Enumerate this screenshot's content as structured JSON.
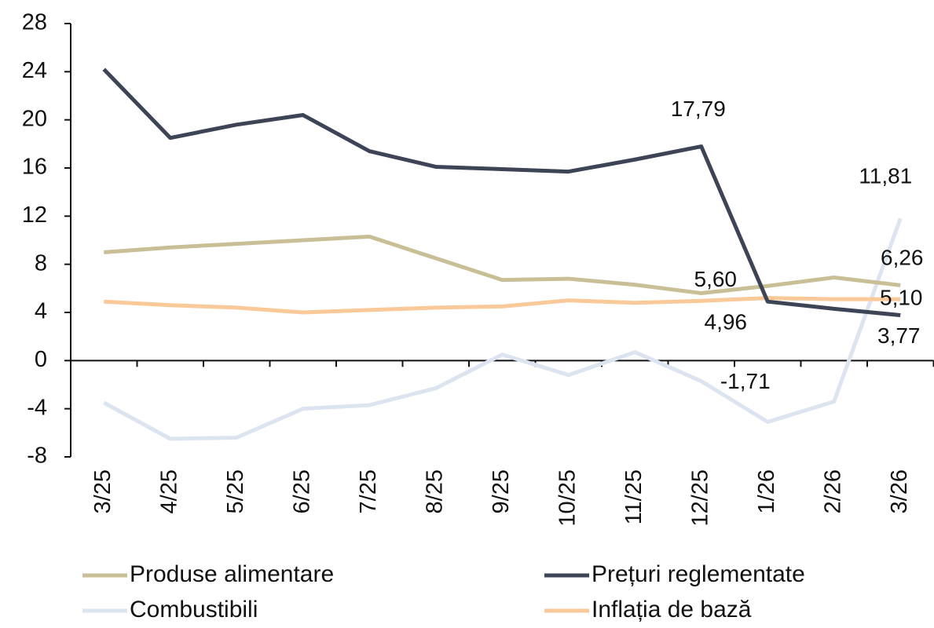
{
  "chart_data": {
    "type": "line",
    "categories": [
      "3/25",
      "4/25",
      "5/25",
      "6/25",
      "7/25",
      "8/25",
      "9/25",
      "10/25",
      "11/25",
      "12/25",
      "1/26",
      "2/26",
      "3/26"
    ],
    "series": [
      {
        "name": "Produse alimentare",
        "color": "#c8bf97",
        "values": [
          9.0,
          9.4,
          9.7,
          10.0,
          10.3,
          8.5,
          6.7,
          6.8,
          6.3,
          5.6,
          6.2,
          6.9,
          6.26
        ],
        "value_labels": [
          null,
          null,
          null,
          null,
          null,
          null,
          null,
          null,
          null,
          "5,60",
          null,
          null,
          "6,26"
        ]
      },
      {
        "name": "Prețuri reglementate",
        "color": "#3d4455",
        "values": [
          24.2,
          18.5,
          19.6,
          20.4,
          17.4,
          16.1,
          15.9,
          15.7,
          16.7,
          17.79,
          4.9,
          4.3,
          3.77
        ],
        "value_labels": [
          null,
          null,
          null,
          null,
          null,
          null,
          null,
          null,
          null,
          "17,79",
          null,
          null,
          "3,77"
        ]
      },
      {
        "name": "Combustibili",
        "color": "#dce4f0",
        "values": [
          -3.5,
          -6.5,
          -6.4,
          -4.0,
          -3.7,
          -2.3,
          0.5,
          -1.2,
          0.7,
          -1.71,
          -5.1,
          -3.4,
          11.81
        ],
        "value_labels": [
          null,
          null,
          null,
          null,
          null,
          null,
          null,
          null,
          null,
          "-1,71",
          null,
          null,
          "11,81"
        ]
      },
      {
        "name": "Inflația de bază",
        "color": "#f9c99a",
        "values": [
          4.9,
          4.6,
          4.4,
          4.0,
          4.2,
          4.4,
          4.5,
          5.0,
          4.8,
          4.96,
          5.2,
          5.1,
          5.1
        ],
        "value_labels": [
          null,
          null,
          null,
          null,
          null,
          null,
          null,
          null,
          null,
          "4,96",
          null,
          null,
          "5,10"
        ]
      }
    ],
    "ylim": [
      -8,
      28
    ],
    "yticks": [
      -8,
      -4,
      0,
      4,
      8,
      12,
      16,
      20,
      24,
      28
    ]
  }
}
